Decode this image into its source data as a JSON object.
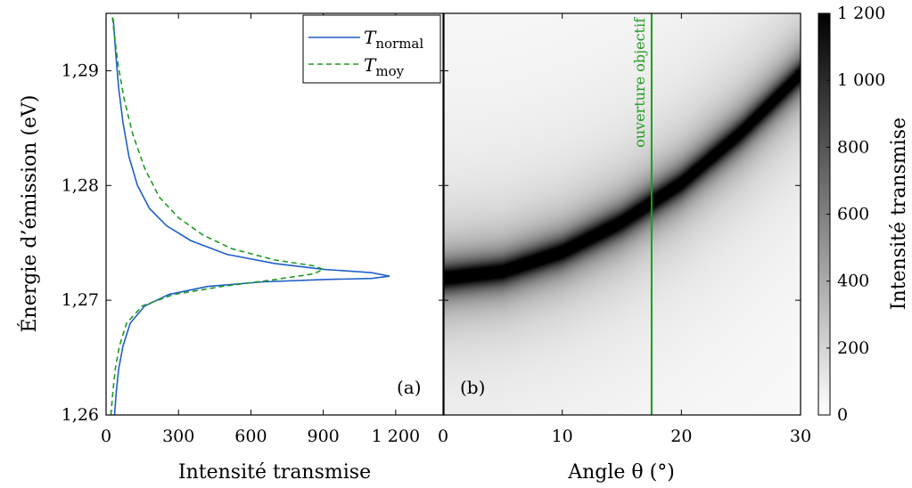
{
  "chart_data": [
    {
      "panel": "(a)",
      "type": "line",
      "xlabel": "Intensité transmise",
      "ylabel": "Énergie d’émission (eV)",
      "xlim": [
        0,
        1400
      ],
      "ylim": [
        1.26,
        1.295
      ],
      "xticks": [
        "0",
        "300",
        "600",
        "900",
        "1 200"
      ],
      "xtick_values": [
        0,
        300,
        600,
        900,
        1200
      ],
      "yticks": [
        "1,26",
        "1,27",
        "1,28",
        "1,29"
      ],
      "ytick_values": [
        1.26,
        1.27,
        1.28,
        1.29
      ],
      "legend_position": "top-right",
      "series": [
        {
          "name": "T",
          "name_subscript": "normal",
          "color": "#1f5fc8",
          "style": "solid",
          "points": [
            [
              35,
              1.26
            ],
            [
              42,
              1.262
            ],
            [
              52,
              1.264
            ],
            [
              70,
              1.266
            ],
            [
              100,
              1.268
            ],
            [
              160,
              1.2695
            ],
            [
              260,
              1.2705
            ],
            [
              420,
              1.2712
            ],
            [
              650,
              1.2716
            ],
            [
              900,
              1.2718
            ],
            [
              1100,
              1.2719
            ],
            [
              1175,
              1.2721
            ],
            [
              1100,
              1.2724
            ],
            [
              900,
              1.2727
            ],
            [
              700,
              1.2732
            ],
            [
              500,
              1.274
            ],
            [
              350,
              1.2752
            ],
            [
              250,
              1.2765
            ],
            [
              180,
              1.278
            ],
            [
              130,
              1.28
            ],
            [
              95,
              1.2825
            ],
            [
              70,
              1.2855
            ],
            [
              52,
              1.2885
            ],
            [
              40,
              1.2915
            ],
            [
              30,
              1.2945
            ]
          ]
        },
        {
          "name": "T",
          "name_subscript": "moy",
          "color": "#1f9a1f",
          "style": "dashed",
          "points": [
            [
              20,
              1.26
            ],
            [
              28,
              1.262
            ],
            [
              38,
              1.264
            ],
            [
              55,
              1.266
            ],
            [
              85,
              1.268
            ],
            [
              150,
              1.2695
            ],
            [
              280,
              1.2705
            ],
            [
              480,
              1.2712
            ],
            [
              700,
              1.2718
            ],
            [
              860,
              1.2723
            ],
            [
              900,
              1.2727
            ],
            [
              860,
              1.273
            ],
            [
              700,
              1.2735
            ],
            [
              520,
              1.2745
            ],
            [
              400,
              1.2757
            ],
            [
              300,
              1.2772
            ],
            [
              220,
              1.279
            ],
            [
              160,
              1.2815
            ],
            [
              110,
              1.2845
            ],
            [
              75,
              1.2875
            ],
            [
              50,
              1.2905
            ],
            [
              32,
              1.2935
            ],
            [
              22,
              1.2955
            ]
          ]
        }
      ]
    },
    {
      "panel": "(b)",
      "type": "heatmap",
      "xlabel": "Angle θ (°)",
      "xlim": [
        0,
        30
      ],
      "ylim": [
        1.26,
        1.295
      ],
      "xticks": [
        "0",
        "10",
        "20",
        "30"
      ],
      "xtick_values": [
        0,
        10,
        20,
        30
      ],
      "ridge_points": [
        [
          0,
          1.2719
        ],
        [
          5,
          1.2725
        ],
        [
          10,
          1.2742
        ],
        [
          15,
          1.2768
        ],
        [
          20,
          1.2802
        ],
        [
          25,
          1.2846
        ],
        [
          30,
          1.2897
        ]
      ],
      "peak_intensity": 1200,
      "colormap": [
        "#ffffff",
        "#000000"
      ],
      "marker_line": {
        "x": 17.5,
        "color": "#1f9a1f",
        "label": "ouverture objectif"
      },
      "colorbar": {
        "label": "Intensité transmise",
        "range": [
          0,
          1200
        ],
        "ticks": [
          "0",
          "200",
          "400",
          "600",
          "800",
          "1 000",
          "1 200"
        ],
        "tick_values": [
          0,
          200,
          400,
          600,
          800,
          1000,
          1200
        ]
      }
    }
  ]
}
